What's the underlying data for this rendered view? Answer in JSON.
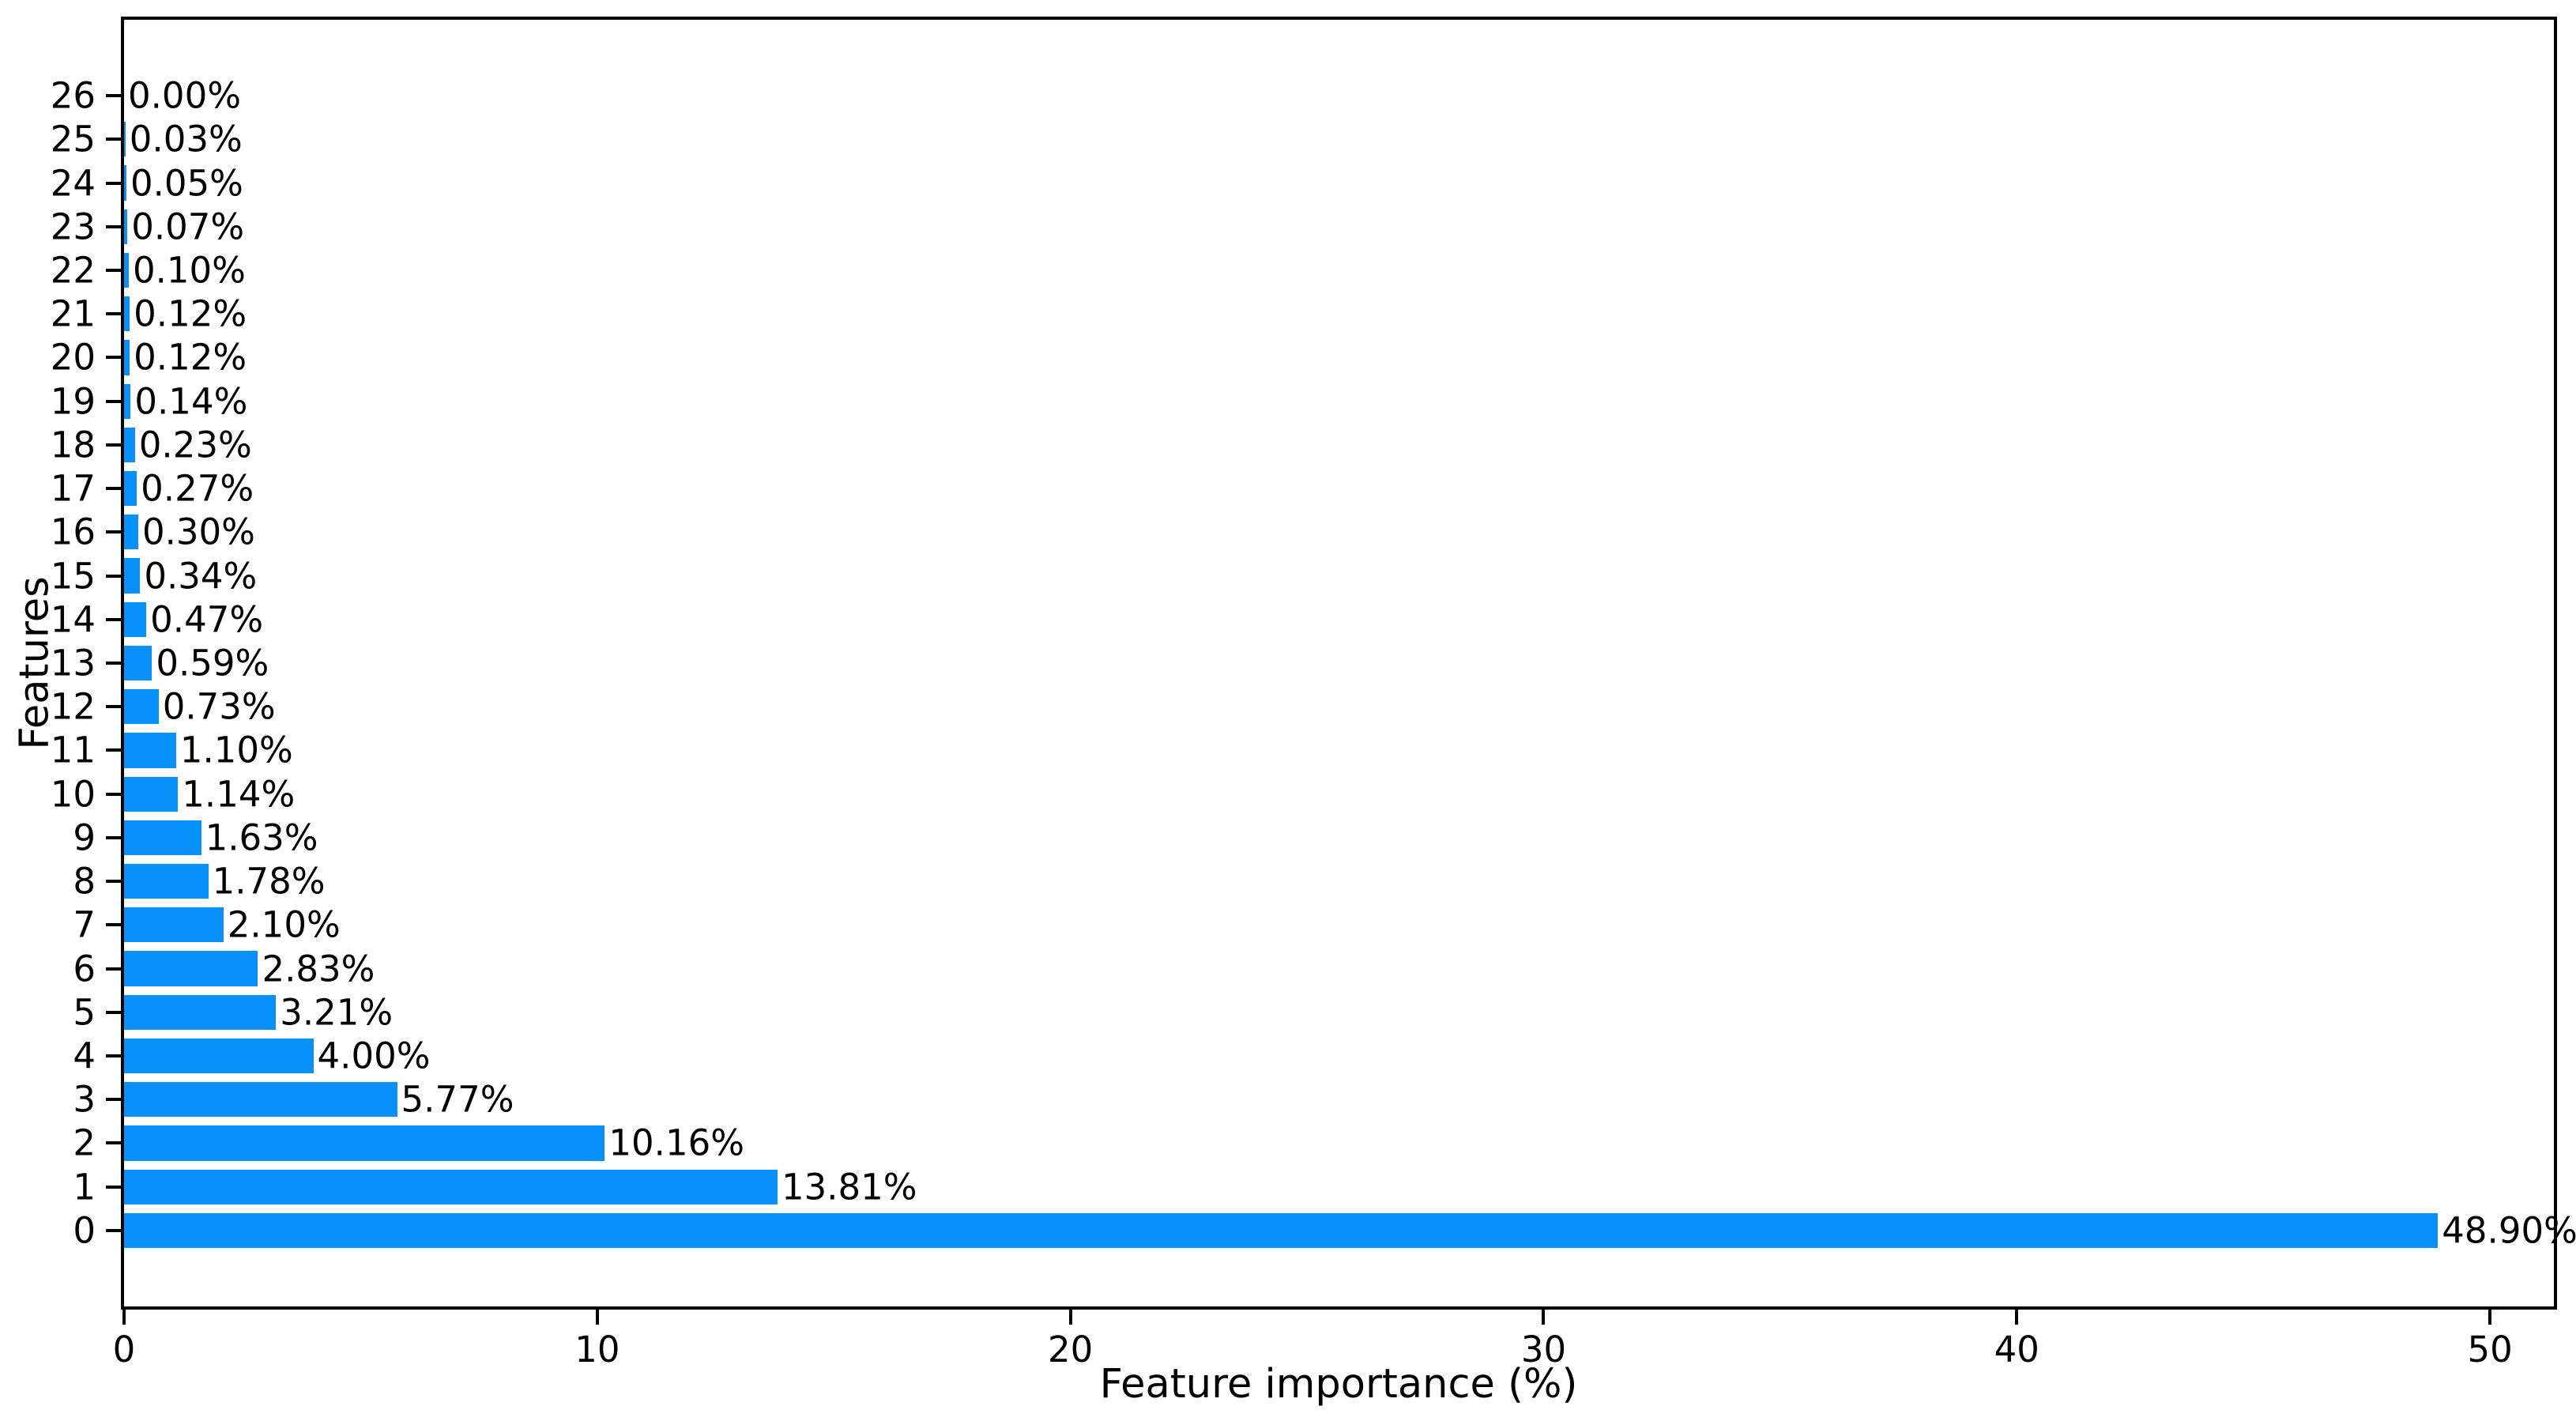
{
  "chart_data": {
    "type": "bar",
    "orientation": "horizontal",
    "title": "",
    "xlabel": "Feature importance (%)",
    "ylabel": "Features",
    "categories": [
      "26",
      "25",
      "24",
      "23",
      "22",
      "21",
      "20",
      "19",
      "18",
      "17",
      "16",
      "15",
      "14",
      "13",
      "12",
      "11",
      "10",
      "9",
      "8",
      "7",
      "6",
      "5",
      "4",
      "3",
      "2",
      "1",
      "0"
    ],
    "values": [
      0.0,
      0.03,
      0.05,
      0.07,
      0.1,
      0.12,
      0.12,
      0.14,
      0.23,
      0.27,
      0.3,
      0.34,
      0.47,
      0.59,
      0.73,
      1.1,
      1.14,
      1.63,
      1.78,
      2.1,
      2.83,
      3.21,
      4.0,
      5.77,
      10.16,
      13.81,
      48.9
    ],
    "bar_labels": [
      "0.00%",
      "0.03%",
      "0.05%",
      "0.07%",
      "0.10%",
      "0.12%",
      "0.12%",
      "0.14%",
      "0.23%",
      "0.27%",
      "0.30%",
      "0.34%",
      "0.47%",
      "0.59%",
      "0.73%",
      "1.10%",
      "1.14%",
      "1.63%",
      "1.78%",
      "2.10%",
      "2.83%",
      "3.21%",
      "4.00%",
      "5.77%",
      "10.16%",
      "13.81%",
      "48.90%"
    ],
    "x_ticks": [
      0,
      10,
      20,
      30,
      40,
      50
    ],
    "xlim": [
      0,
      51.35
    ],
    "ylim": [
      -1.74,
      27.74
    ],
    "bar_height": 0.8,
    "bar_color": "#0991fb",
    "text_color": "#000000",
    "grid": false,
    "legend": null,
    "background": "#ffffff"
  }
}
